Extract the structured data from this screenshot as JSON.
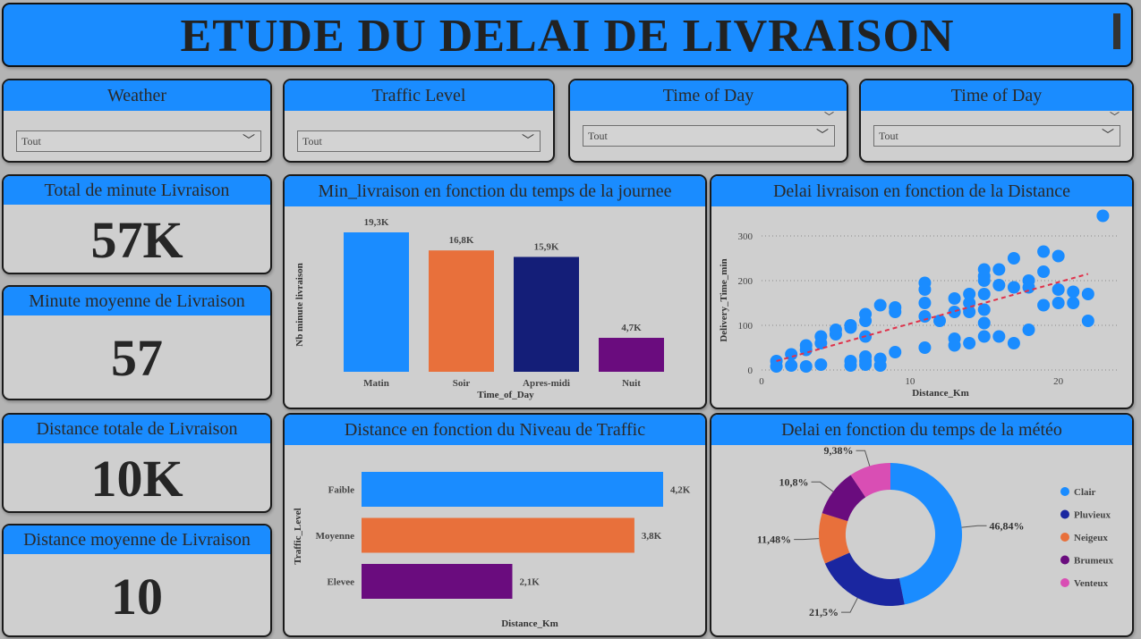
{
  "title": "ETUDE DU DELAI DE LIVRAISON",
  "slicers": [
    {
      "label": "Weather",
      "value": "Tout"
    },
    {
      "label": "Traffic Level",
      "value": "Tout"
    },
    {
      "label": "Time of Day",
      "value": "Tout"
    },
    {
      "label": "Time of Day",
      "value": "Tout"
    }
  ],
  "kpis": [
    {
      "label": "Total de minute Livraison",
      "value": "57K"
    },
    {
      "label": "Minute moyenne de Livraison",
      "value": "57"
    },
    {
      "label": "Distance totale de Livraison",
      "value": "10K"
    },
    {
      "label": "Distance moyenne de Livraison",
      "value": "10"
    }
  ],
  "icons": {
    "dropdown": "chevron-down-icon",
    "handle": "drag-handle-icon"
  },
  "colors": {
    "accent": "#1a8cff",
    "orange": "#e8703b",
    "navy": "#141e78",
    "purple": "#6a0c7e",
    "pink": "#d94eb4",
    "trend": "#e0314a"
  },
  "chart_data": [
    {
      "type": "bar",
      "title": "Min_livraison en fonction du temps de la journee",
      "xlabel": "Time_of_Day",
      "ylabel": "Nb minute livraison",
      "categories": [
        "Matin",
        "Soir",
        "Apres-midi",
        "Nuit"
      ],
      "values": [
        19.3,
        16.8,
        15.9,
        4.7
      ],
      "value_labels": [
        "19,3K",
        "16,8K",
        "15,9K",
        "4,7K"
      ],
      "colors": [
        "#1a8cff",
        "#e8703b",
        "#141e78",
        "#6a0c7e"
      ]
    },
    {
      "type": "scatter",
      "title": "Delai livraison en fonction de la Distance",
      "xlabel": "Distance_Km",
      "ylabel": "Delivery_Time_min",
      "xlim": [
        0,
        24
      ],
      "ylim": [
        0,
        350
      ],
      "xticks": [
        "0",
        "10",
        "20"
      ],
      "yticks": [
        "0",
        "100",
        "200",
        "300"
      ],
      "grid": true,
      "trend": [
        [
          1,
          20
        ],
        [
          22,
          215
        ]
      ],
      "points": [
        [
          1,
          20
        ],
        [
          1,
          8
        ],
        [
          2,
          35
        ],
        [
          2,
          10
        ],
        [
          3,
          45
        ],
        [
          3,
          55
        ],
        [
          3,
          8
        ],
        [
          4,
          75
        ],
        [
          4,
          60
        ],
        [
          4,
          12
        ],
        [
          5,
          80
        ],
        [
          5,
          90
        ],
        [
          6,
          95
        ],
        [
          6,
          100
        ],
        [
          6,
          20
        ],
        [
          6,
          10
        ],
        [
          7,
          110
        ],
        [
          7,
          125
        ],
        [
          7,
          75
        ],
        [
          7,
          30
        ],
        [
          7,
          20
        ],
        [
          7,
          12
        ],
        [
          8,
          145
        ],
        [
          8,
          25
        ],
        [
          8,
          10
        ],
        [
          9,
          140
        ],
        [
          9,
          130
        ],
        [
          9,
          40
        ],
        [
          11,
          195
        ],
        [
          11,
          180
        ],
        [
          11,
          150
        ],
        [
          11,
          120
        ],
        [
          11,
          50
        ],
        [
          12,
          110
        ],
        [
          13,
          160
        ],
        [
          13,
          130
        ],
        [
          13,
          70
        ],
        [
          13,
          55
        ],
        [
          14,
          170
        ],
        [
          14,
          150
        ],
        [
          14,
          130
        ],
        [
          14,
          60
        ],
        [
          15,
          225
        ],
        [
          15,
          210
        ],
        [
          15,
          200
        ],
        [
          15,
          170
        ],
        [
          15,
          135
        ],
        [
          15,
          105
        ],
        [
          15,
          75
        ],
        [
          16,
          225
        ],
        [
          16,
          190
        ],
        [
          16,
          75
        ],
        [
          17,
          250
        ],
        [
          17,
          185
        ],
        [
          17,
          60
        ],
        [
          18,
          200
        ],
        [
          18,
          185
        ],
        [
          18,
          90
        ],
        [
          19,
          265
        ],
        [
          19,
          220
        ],
        [
          19,
          145
        ],
        [
          20,
          255
        ],
        [
          20,
          180
        ],
        [
          20,
          150
        ],
        [
          21,
          175
        ],
        [
          21,
          150
        ],
        [
          22,
          170
        ],
        [
          22,
          110
        ],
        [
          23,
          345
        ]
      ]
    },
    {
      "type": "bar",
      "orientation": "horizontal",
      "title": "Distance en fonction du Niveau de Traffic",
      "xlabel": "Distance_Km",
      "ylabel": "Traffic_Level",
      "categories": [
        "Faible",
        "Moyenne",
        "Elevee"
      ],
      "values": [
        4.2,
        3.8,
        2.1
      ],
      "value_labels": [
        "4,2K",
        "3,8K",
        "2,1K"
      ],
      "colors": [
        "#1a8cff",
        "#e8703b",
        "#6a0c7e"
      ]
    },
    {
      "type": "pie",
      "title": "Delai en fonction du temps de la météo",
      "legend": "right",
      "slices": [
        {
          "name": "Clair",
          "value": 46.84,
          "label": "46,84%",
          "color": "#1a8cff"
        },
        {
          "name": "Pluvieux",
          "value": 21.5,
          "label": "21,5%",
          "color": "#1a26a0"
        },
        {
          "name": "Neigeux",
          "value": 11.48,
          "label": "11,48%",
          "color": "#e8703b"
        },
        {
          "name": "Brumeux",
          "value": 10.8,
          "label": "10,8%",
          "color": "#6a0c7e"
        },
        {
          "name": "Venteux",
          "value": 9.38,
          "label": "9,38%",
          "color": "#d94eb4"
        }
      ]
    }
  ]
}
